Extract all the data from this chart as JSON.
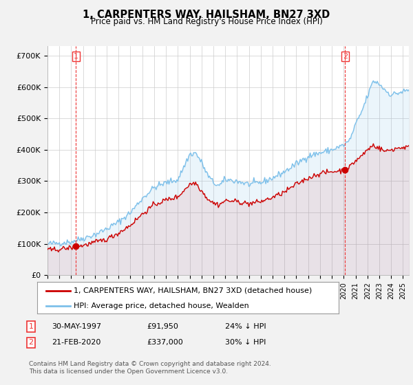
{
  "title": "1, CARPENTERS WAY, HAILSHAM, BN27 3XD",
  "subtitle": "Price paid vs. HM Land Registry's House Price Index (HPI)",
  "ylabel_ticks": [
    "£0",
    "£100K",
    "£200K",
    "£300K",
    "£400K",
    "£500K",
    "£600K",
    "£700K"
  ],
  "ylim": [
    0,
    730000
  ],
  "xlim_start": 1995.0,
  "xlim_end": 2025.5,
  "purchase1_date": 1997.41,
  "purchase1_price": 91950,
  "purchase2_date": 2020.12,
  "purchase2_price": 337000,
  "legend_line1": "1, CARPENTERS WAY, HAILSHAM, BN27 3XD (detached house)",
  "legend_line2": "HPI: Average price, detached house, Wealden",
  "table_row1": [
    "1",
    "30-MAY-1997",
    "£91,950",
    "24% ↓ HPI"
  ],
  "table_row2": [
    "2",
    "21-FEB-2020",
    "£337,000",
    "30% ↓ HPI"
  ],
  "footer": "Contains HM Land Registry data © Crown copyright and database right 2024.\nThis data is licensed under the Open Government Licence v3.0.",
  "hpi_color": "#7DC0EA",
  "price_color": "#CC0000",
  "vline_color": "#EE3333",
  "background_color": "#F2F2F2",
  "plot_bg_color": "#FFFFFF",
  "grid_color": "#CCCCCC"
}
